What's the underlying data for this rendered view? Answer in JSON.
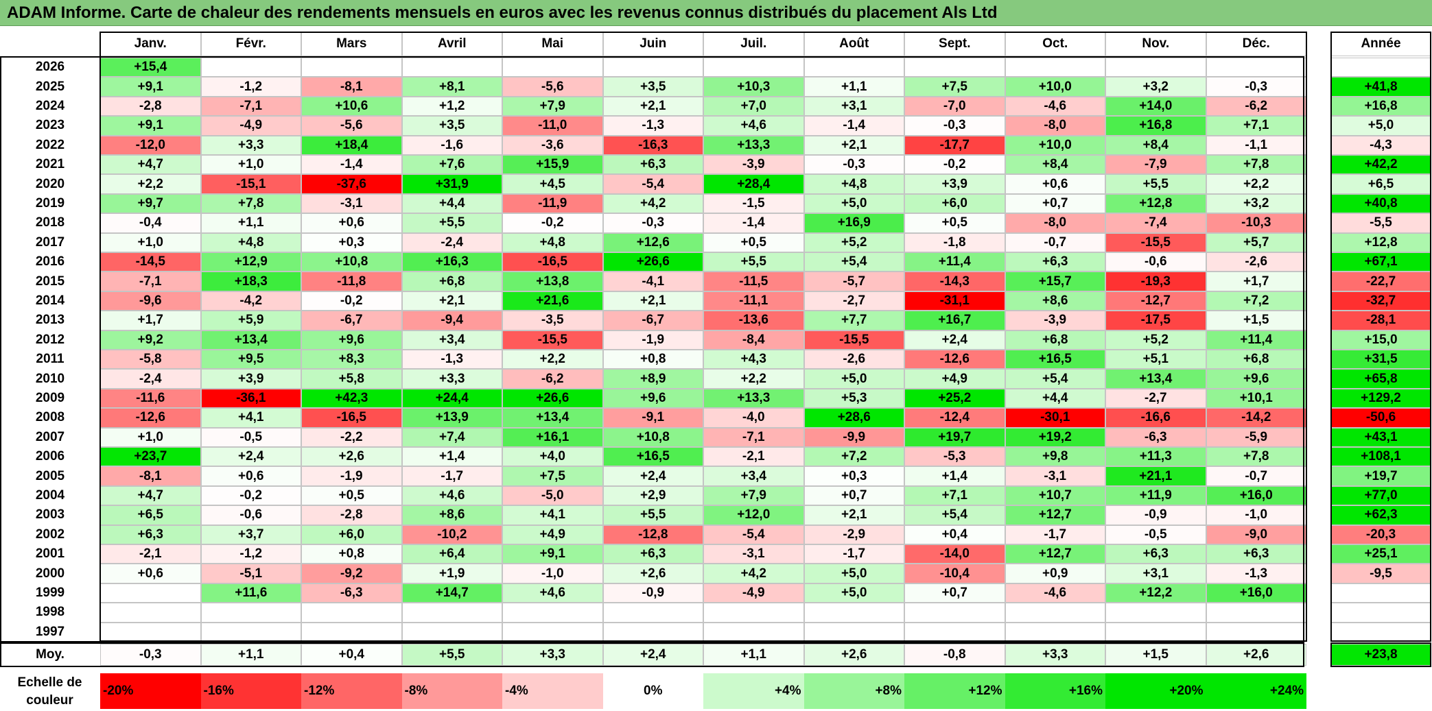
{
  "title": "ADAM Informe. Carte de chaleur des rendements mensuels en euros avec les revenus connus distribués du placement Als Ltd",
  "chart_data": {
    "type": "heatmap",
    "title": "ADAM Informe. Carte de chaleur des rendements mensuels en euros avec les revenus connus distribués du placement Als Ltd",
    "columns": [
      "Janv.",
      "Févr.",
      "Mars",
      "Avril",
      "Mai",
      "Juin",
      "Juil.",
      "Août",
      "Sept.",
      "Oct.",
      "Nov.",
      "Déc."
    ],
    "annual_header": "Année",
    "rows": [
      {
        "year": "2026",
        "months": [
          "+15,4",
          "",
          "",
          "",
          "",
          "",
          "",
          "",
          "",
          "",
          "",
          ""
        ],
        "annual": ""
      },
      {
        "year": "2025",
        "months": [
          "+9,1",
          "-1,2",
          "-8,1",
          "+8,1",
          "-5,6",
          "+3,5",
          "+10,3",
          "+1,1",
          "+7,5",
          "+10,0",
          "+3,2",
          "-0,3"
        ],
        "annual": "+41,8"
      },
      {
        "year": "2024",
        "months": [
          "-2,8",
          "-7,1",
          "+10,6",
          "+1,2",
          "+7,9",
          "+2,1",
          "+7,0",
          "+3,1",
          "-7,0",
          "-4,6",
          "+14,0",
          "-6,2"
        ],
        "annual": "+16,8"
      },
      {
        "year": "2023",
        "months": [
          "+9,1",
          "-4,9",
          "-5,6",
          "+3,5",
          "-11,0",
          "-1,3",
          "+4,6",
          "-1,4",
          "-0,3",
          "-8,0",
          "+16,8",
          "+7,1"
        ],
        "annual": "+5,0"
      },
      {
        "year": "2022",
        "months": [
          "-12,0",
          "+3,3",
          "+18,4",
          "-1,6",
          "-3,6",
          "-16,3",
          "+13,3",
          "+2,1",
          "-17,7",
          "+10,0",
          "+8,4",
          "-1,1"
        ],
        "annual": "-4,3"
      },
      {
        "year": "2021",
        "months": [
          "+4,7",
          "+1,0",
          "-1,4",
          "+7,6",
          "+15,9",
          "+6,3",
          "-3,9",
          "-0,3",
          "-0,2",
          "+8,4",
          "-7,9",
          "+7,8"
        ],
        "annual": "+42,2"
      },
      {
        "year": "2020",
        "months": [
          "+2,2",
          "-15,1",
          "-37,6",
          "+31,9",
          "+4,5",
          "-5,4",
          "+28,4",
          "+4,8",
          "+3,9",
          "+0,6",
          "+5,5",
          "+2,2"
        ],
        "annual": "+6,5"
      },
      {
        "year": "2019",
        "months": [
          "+9,7",
          "+7,8",
          "-3,1",
          "+4,4",
          "-11,9",
          "+4,2",
          "-1,5",
          "+5,0",
          "+6,0",
          "+0,7",
          "+12,8",
          "+3,2"
        ],
        "annual": "+40,8"
      },
      {
        "year": "2018",
        "months": [
          "-0,4",
          "+1,1",
          "+0,6",
          "+5,5",
          "-0,2",
          "-0,3",
          "-1,4",
          "+16,9",
          "+0,5",
          "-8,0",
          "-7,4",
          "-10,3"
        ],
        "annual": "-5,5"
      },
      {
        "year": "2017",
        "months": [
          "+1,0",
          "+4,8",
          "+0,3",
          "-2,4",
          "+4,8",
          "+12,6",
          "+0,5",
          "+5,2",
          "-1,8",
          "-0,7",
          "-15,5",
          "+5,7"
        ],
        "annual": "+12,8"
      },
      {
        "year": "2016",
        "months": [
          "-14,5",
          "+12,9",
          "+10,8",
          "+16,3",
          "-16,5",
          "+26,6",
          "+5,5",
          "+5,4",
          "+11,4",
          "+6,3",
          "-0,6",
          "-2,6"
        ],
        "annual": "+67,1"
      },
      {
        "year": "2015",
        "months": [
          "-7,1",
          "+18,3",
          "-11,8",
          "+6,8",
          "+13,8",
          "-4,1",
          "-11,5",
          "-5,7",
          "-14,3",
          "+15,7",
          "-19,3",
          "+1,7"
        ],
        "annual": "-22,7"
      },
      {
        "year": "2014",
        "months": [
          "-9,6",
          "-4,2",
          "-0,2",
          "+2,1",
          "+21,6",
          "+2,1",
          "-11,1",
          "-2,7",
          "-31,1",
          "+8,6",
          "-12,7",
          "+7,2"
        ],
        "annual": "-32,7"
      },
      {
        "year": "2013",
        "months": [
          "+1,7",
          "+5,9",
          "-6,7",
          "-9,4",
          "-3,5",
          "-6,7",
          "-13,6",
          "+7,7",
          "+16,7",
          "-3,9",
          "-17,5",
          "+1,5"
        ],
        "annual": "-28,1"
      },
      {
        "year": "2012",
        "months": [
          "+9,2",
          "+13,4",
          "+9,6",
          "+3,4",
          "-15,5",
          "-1,9",
          "-8,4",
          "-15,5",
          "+2,4",
          "+6,8",
          "+5,2",
          "+11,4"
        ],
        "annual": "+15,0"
      },
      {
        "year": "2011",
        "months": [
          "-5,8",
          "+9,5",
          "+8,3",
          "-1,3",
          "+2,2",
          "+0,8",
          "+4,3",
          "-2,6",
          "-12,6",
          "+16,5",
          "+5,1",
          "+6,8"
        ],
        "annual": "+31,5"
      },
      {
        "year": "2010",
        "months": [
          "-2,4",
          "+3,9",
          "+5,8",
          "+3,3",
          "-6,2",
          "+8,9",
          "+2,2",
          "+5,0",
          "+4,9",
          "+5,4",
          "+13,4",
          "+9,6"
        ],
        "annual": "+65,8"
      },
      {
        "year": "2009",
        "months": [
          "-11,6",
          "-36,1",
          "+42,3",
          "+24,4",
          "+26,6",
          "+9,6",
          "+13,3",
          "+5,3",
          "+25,2",
          "+4,4",
          "-2,7",
          "+10,1"
        ],
        "annual": "+129,2"
      },
      {
        "year": "2008",
        "months": [
          "-12,6",
          "+4,1",
          "-16,5",
          "+13,9",
          "+13,4",
          "-9,1",
          "-4,0",
          "+28,6",
          "-12,4",
          "-30,1",
          "-16,6",
          "-14,2"
        ],
        "annual": "-50,6"
      },
      {
        "year": "2007",
        "months": [
          "+1,0",
          "-0,5",
          "-2,2",
          "+7,4",
          "+16,1",
          "+10,8",
          "-7,1",
          "-9,9",
          "+19,7",
          "+19,2",
          "-6,3",
          "-5,9"
        ],
        "annual": "+43,1"
      },
      {
        "year": "2006",
        "months": [
          "+23,7",
          "+2,4",
          "+2,6",
          "+1,4",
          "+4,0",
          "+16,5",
          "-2,1",
          "+7,2",
          "-5,3",
          "+9,8",
          "+11,3",
          "+7,8"
        ],
        "annual": "+108,1"
      },
      {
        "year": "2005",
        "months": [
          "-8,1",
          "+0,6",
          "-1,9",
          "-1,7",
          "+7,5",
          "+2,4",
          "+3,4",
          "+0,3",
          "+1,4",
          "-3,1",
          "+21,1",
          "-0,7"
        ],
        "annual": "+19,7"
      },
      {
        "year": "2004",
        "months": [
          "+4,7",
          "-0,2",
          "+0,5",
          "+4,6",
          "-5,0",
          "+2,9",
          "+7,9",
          "+0,7",
          "+7,1",
          "+10,7",
          "+11,9",
          "+16,0"
        ],
        "annual": "+77,0"
      },
      {
        "year": "2003",
        "months": [
          "+6,5",
          "-0,6",
          "-2,8",
          "+8,6",
          "+4,1",
          "+5,5",
          "+12,0",
          "+2,1",
          "+5,4",
          "+12,7",
          "-0,9",
          "-1,0"
        ],
        "annual": "+62,3"
      },
      {
        "year": "2002",
        "months": [
          "+6,3",
          "+3,7",
          "+6,0",
          "-10,2",
          "+4,9",
          "-12,8",
          "-5,4",
          "-2,9",
          "+0,4",
          "-1,7",
          "-0,5",
          "-9,0"
        ],
        "annual": "-20,3"
      },
      {
        "year": "2001",
        "months": [
          "-2,1",
          "-1,2",
          "+0,8",
          "+6,4",
          "+9,1",
          "+6,3",
          "-3,1",
          "-1,7",
          "-14,0",
          "+12,7",
          "+6,3",
          "+6,3"
        ],
        "annual": "+25,1"
      },
      {
        "year": "2000",
        "months": [
          "+0,6",
          "-5,1",
          "-9,2",
          "+1,9",
          "-1,0",
          "+2,6",
          "+4,2",
          "+5,0",
          "-10,4",
          "+0,9",
          "+3,1",
          "-1,3"
        ],
        "annual": "-9,5"
      },
      {
        "year": "1999",
        "months": [
          "",
          "+11,6",
          "-6,3",
          "+14,7",
          "+4,6",
          "-0,9",
          "-4,9",
          "+5,0",
          "+0,7",
          "-4,6",
          "+12,2",
          "+16,0"
        ],
        "annual": ""
      },
      {
        "year": "1998",
        "months": [
          "",
          "",
          "",
          "",
          "",
          "",
          "",
          "",
          "",
          "",
          "",
          ""
        ],
        "annual": ""
      },
      {
        "year": "1997",
        "months": [
          "",
          "",
          "",
          "",
          "",
          "",
          "",
          "",
          "",
          "",
          "",
          ""
        ],
        "annual": ""
      }
    ],
    "average": {
      "label": "Moy.",
      "months": [
        "-0,3",
        "+1,1",
        "+0,4",
        "+5,5",
        "+3,3",
        "+2,4",
        "+1,1",
        "+2,6",
        "-0,8",
        "+3,3",
        "+1,5",
        "+2,6"
      ],
      "annual": "+23,8"
    },
    "scale": {
      "label": "Echelle de couleur",
      "stops": [
        "-20%",
        "-16%",
        "-12%",
        "-8%",
        "-4%",
        "0%",
        "+4%",
        "+8%",
        "+12%",
        "+16%",
        "+20%",
        "+24%"
      ]
    },
    "colors": {
      "negative_max": "#ff0000",
      "neutral": "#ffffff",
      "positive_max": "#00e600",
      "title_bar": "#86c97e"
    }
  }
}
